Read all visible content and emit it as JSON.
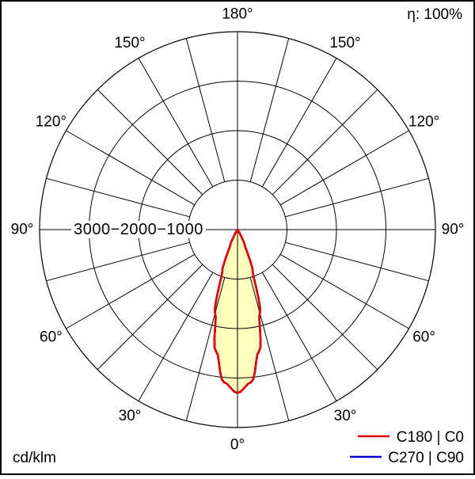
{
  "chart_data": {
    "type": "polar",
    "unit_label": "cd/klm",
    "efficiency_label": "η: 100%",
    "radial_axis_label": "3000−2000−1000",
    "radial_ticks": [
      1000,
      2000,
      3000
    ],
    "rlim": [
      0,
      4000
    ],
    "spoke_step_deg": 15,
    "angle_labels": [
      {
        "gamma": 180,
        "label": "180°"
      },
      {
        "gamma": 150,
        "label": "150°"
      },
      {
        "gamma": 120,
        "label": "120°"
      },
      {
        "gamma": 90,
        "label": "90°"
      },
      {
        "gamma": 60,
        "label": "60°"
      },
      {
        "gamma": 30,
        "label": "30°"
      },
      {
        "gamma": 0,
        "label": "0°"
      }
    ],
    "series": [
      {
        "name": "C180 | C0",
        "color": "#e00000",
        "fill": "#ffffbe",
        "gamma_deg": [
          0,
          5,
          10,
          15,
          20,
          25,
          30,
          35,
          40,
          45,
          60,
          90
        ],
        "values_cd_per_klm": [
          3300,
          3100,
          2500,
          1750,
          900,
          350,
          100,
          25,
          5,
          0,
          0,
          0
        ]
      },
      {
        "name": "C270 | C90",
        "color": "#0000cc",
        "gamma_deg": [
          0,
          5,
          10,
          15,
          20,
          25,
          30,
          35,
          40,
          45,
          60,
          90
        ],
        "values_cd_per_klm": [
          3300,
          3100,
          2500,
          1750,
          900,
          350,
          100,
          25,
          5,
          0,
          0,
          0
        ]
      }
    ],
    "legend": [
      {
        "label": "C180 | C0",
        "color": "#e00000"
      },
      {
        "label": "C270 | C90",
        "color": "#0000cc"
      }
    ]
  }
}
